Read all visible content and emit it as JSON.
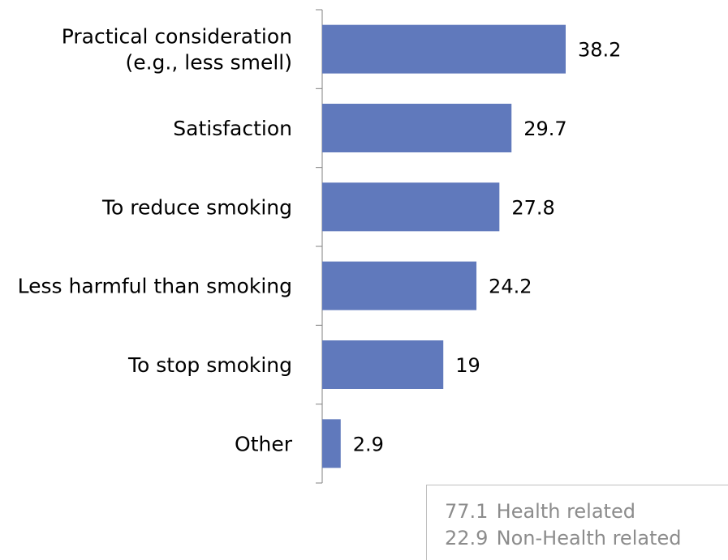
{
  "chart_data": {
    "type": "bar",
    "orientation": "horizontal",
    "categories": [
      [
        "Practical consideration",
        "(e.g., less smell)"
      ],
      [
        "Satisfaction"
      ],
      [
        "To reduce smoking"
      ],
      [
        "Less harmful than smoking"
      ],
      [
        "To stop smoking"
      ],
      [
        "Other"
      ]
    ],
    "values": [
      38.2,
      29.7,
      27.8,
      24.2,
      19,
      2.9
    ],
    "value_labels": [
      "38.2",
      "29.7",
      "27.8",
      "24.2",
      "19",
      "2.9"
    ],
    "xlim": [
      0,
      50
    ],
    "bar_color": "#6079BC",
    "axis_color": "#808080",
    "grid": false,
    "legend": "none"
  },
  "summary": [
    {
      "value": "77.1",
      "label": "Health related"
    },
    {
      "value": "22.9",
      "label": "Non-Health related"
    }
  ]
}
